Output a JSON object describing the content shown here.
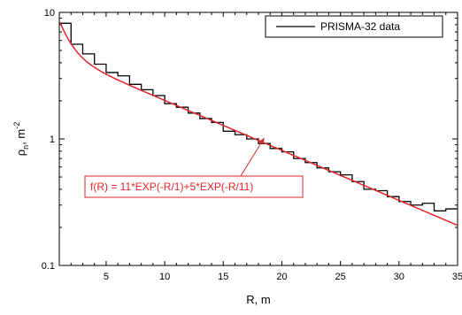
{
  "chart_data": {
    "type": "line",
    "xlabel": "R, m",
    "ylabel_main": "ρ",
    "ylabel_sub": "n",
    "ylabel_unit": ", m",
    "ylabel_exp": "-2",
    "xlim": [
      1,
      35
    ],
    "ylim": [
      0.1,
      10
    ],
    "yscale": "log",
    "x_ticks": [
      {
        "value": 5,
        "label": "5"
      },
      {
        "value": 10,
        "label": "10"
      },
      {
        "value": 15,
        "label": "15"
      },
      {
        "value": 20,
        "label": "20"
      },
      {
        "value": 25,
        "label": "25"
      },
      {
        "value": 30,
        "label": "30"
      },
      {
        "value": 35,
        "label": "35"
      }
    ],
    "y_ticks": [
      {
        "value": 10,
        "label": "10"
      },
      {
        "value": 1,
        "label": "1"
      },
      {
        "value": 0.1,
        "label": "0.1"
      }
    ],
    "legend": {
      "label": "PRISMA-32 data",
      "position": "top-right"
    },
    "series": [
      {
        "name": "PRISMA-32 data",
        "style": "step",
        "color": "#000000",
        "bin_width": 1,
        "x": [
          1,
          2,
          3,
          4,
          5,
          6,
          7,
          8,
          9,
          10,
          11,
          12,
          13,
          14,
          15,
          16,
          17,
          18,
          19,
          20,
          21,
          22,
          23,
          24,
          25,
          26,
          27,
          28,
          29,
          30,
          31,
          32,
          33,
          34
        ],
        "values": [
          8.2,
          5.6,
          4.7,
          3.9,
          3.35,
          3.15,
          2.7,
          2.45,
          2.2,
          1.9,
          1.78,
          1.6,
          1.45,
          1.35,
          1.15,
          1.08,
          1.0,
          0.92,
          0.84,
          0.79,
          0.7,
          0.65,
          0.59,
          0.55,
          0.52,
          0.46,
          0.4,
          0.39,
          0.35,
          0.32,
          0.3,
          0.31,
          0.27,
          0.28
        ]
      },
      {
        "style": "function",
        "color": "#e0262a",
        "expression": {
          "a1": 11,
          "b1": 1,
          "a2": 5,
          "b2": 11
        }
      }
    ],
    "annotation": {
      "text": "f(R) = 11*EXP(-R/1)+5*EXP(-R/11)",
      "x": 18.5,
      "y": 1.02
    }
  }
}
